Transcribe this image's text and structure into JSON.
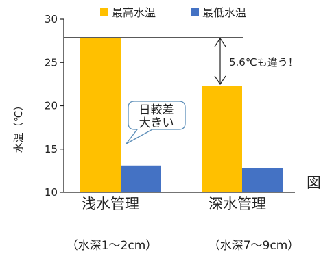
{
  "chart_data": {
    "type": "bar",
    "categories": [
      "浅水管理",
      "深水管理"
    ],
    "category_notes": [
      "（水深1～2cm）",
      "（水深7～9cm）"
    ],
    "series": [
      {
        "name": "最高水温",
        "values": [
          27.9,
          22.3
        ],
        "color": "#FFC000"
      },
      {
        "name": "最低水温",
        "values": [
          13.1,
          12.8
        ],
        "color": "#4472C4"
      }
    ],
    "ylabel": "水温（℃）",
    "ylim": [
      10,
      30
    ],
    "yticks": [
      10,
      15,
      20,
      25,
      30
    ],
    "grid": false,
    "legend": "top",
    "annotations": {
      "difference": "5.6℃も違う！",
      "callout": [
        "日較差",
        "大きい"
      ]
    },
    "clipped_text": "図"
  }
}
